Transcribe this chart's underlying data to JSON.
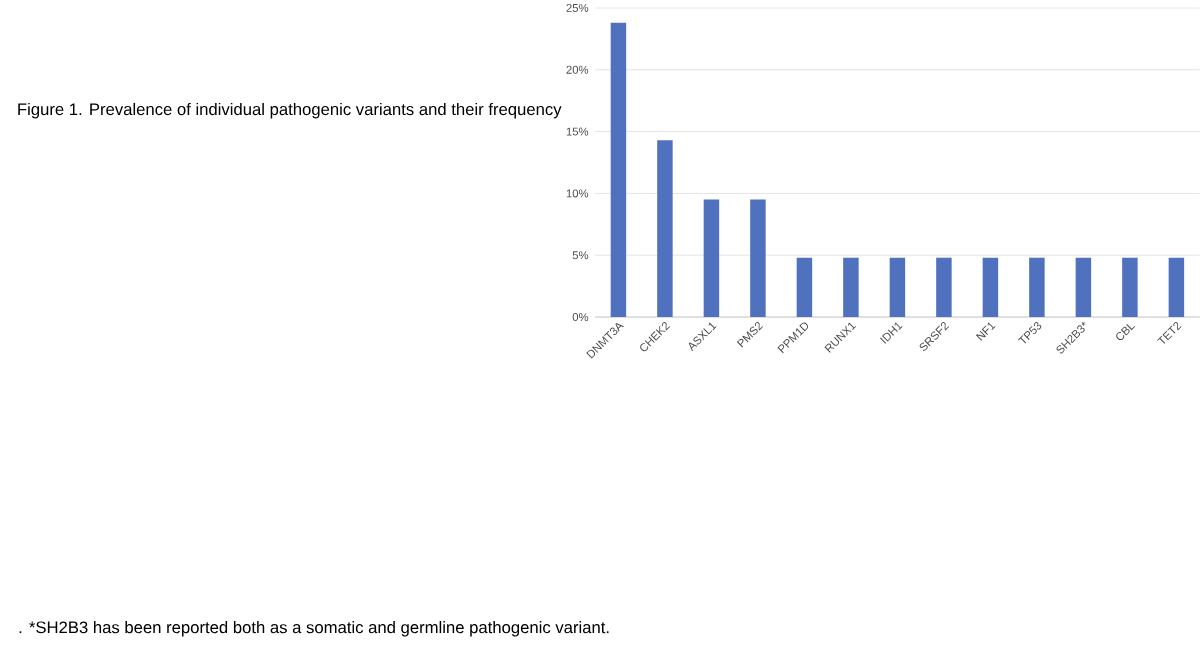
{
  "chart_data": {
    "type": "bar",
    "title": "Figure 1. Prevalence of individual pathogenic variants and their frequency",
    "categories": [
      "DNMT3A",
      "CHEK2",
      "ASXL1",
      "PMS2",
      "PPM1D",
      "RUNX1",
      "IDH1",
      "SRSF2",
      "NF1",
      "TP53",
      "SH2B3*",
      "CBL",
      "TET2"
    ],
    "values": [
      23.8,
      14.3,
      9.5,
      9.5,
      4.8,
      4.8,
      4.8,
      4.8,
      4.8,
      4.8,
      4.8,
      4.8,
      4.8
    ],
    "color": "#4f71be",
    "ylim": [
      0,
      25
    ],
    "yticks": [
      {
        "value": 0,
        "label": "0%"
      },
      {
        "value": 5,
        "label": "5%"
      },
      {
        "value": 10,
        "label": "10%"
      },
      {
        "value": 15,
        "label": "15%"
      },
      {
        "value": 20,
        "label": "20%"
      },
      {
        "value": 25,
        "label": "25%"
      }
    ],
    "grid": "y",
    "annotations": [
      ". *SH2B3 has been reported both as a somatic and germline pathogenic variant."
    ]
  }
}
